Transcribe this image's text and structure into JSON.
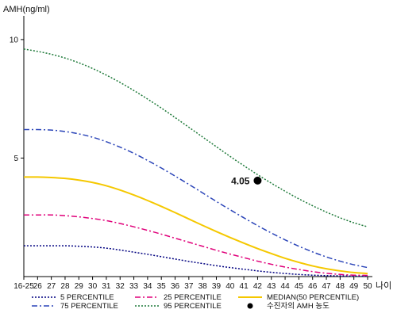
{
  "chart_data": {
    "type": "line",
    "ylabel": "AMH(ng/ml)",
    "xlabel": "나이",
    "ylim": [
      0,
      11
    ],
    "yticks": [
      5,
      10
    ],
    "x_categories": [
      "16-25",
      "26",
      "27",
      "28",
      "29",
      "30",
      "31",
      "32",
      "33",
      "34",
      "35",
      "36",
      "37",
      "38",
      "39",
      "40",
      "41",
      "42",
      "43",
      "44",
      "45",
      "46",
      "47",
      "48",
      "49",
      "50"
    ],
    "series": [
      {
        "name": "5 PERCENTILE",
        "color": "#000080",
        "dash": "2,2",
        "values": [
          1.3,
          1.3,
          1.3,
          1.3,
          1.28,
          1.25,
          1.2,
          1.12,
          1.03,
          0.94,
          0.84,
          0.74,
          0.64,
          0.55,
          0.46,
          0.38,
          0.31,
          0.24,
          0.18,
          0.13,
          0.09,
          0.06,
          0.04,
          0.03,
          0.02,
          0.02
        ]
      },
      {
        "name": "25 PERCENTILE",
        "color": "#e0007a",
        "dash": "7,3,2,3",
        "values": [
          2.6,
          2.6,
          2.6,
          2.57,
          2.52,
          2.45,
          2.36,
          2.24,
          2.1,
          1.95,
          1.79,
          1.62,
          1.45,
          1.28,
          1.11,
          0.95,
          0.8,
          0.65,
          0.52,
          0.4,
          0.3,
          0.21,
          0.14,
          0.09,
          0.06,
          0.05
        ]
      },
      {
        "name": "MEDIAN(50 PERCENTILE)",
        "color": "#f5c800",
        "dash": "",
        "values": [
          4.2,
          4.2,
          4.18,
          4.14,
          4.07,
          3.97,
          3.83,
          3.65,
          3.44,
          3.21,
          2.96,
          2.7,
          2.43,
          2.16,
          1.9,
          1.65,
          1.41,
          1.18,
          0.97,
          0.77,
          0.6,
          0.45,
          0.33,
          0.24,
          0.17,
          0.13
        ]
      },
      {
        "name": "75 PERCENTILE",
        "color": "#2a44b8",
        "dash": "7,3,2,3",
        "values": [
          6.2,
          6.2,
          6.18,
          6.12,
          6.02,
          5.88,
          5.69,
          5.46,
          5.2,
          4.9,
          4.58,
          4.24,
          3.89,
          3.53,
          3.17,
          2.82,
          2.48,
          2.15,
          1.84,
          1.55,
          1.28,
          1.04,
          0.83,
          0.65,
          0.5,
          0.38
        ]
      },
      {
        "name": "95 PERCENTILE",
        "color": "#1f7a3a",
        "dash": "2,2",
        "values": [
          9.6,
          9.5,
          9.38,
          9.22,
          9.02,
          8.78,
          8.5,
          8.19,
          7.85,
          7.49,
          7.11,
          6.71,
          6.3,
          5.89,
          5.48,
          5.07,
          4.68,
          4.3,
          3.94,
          3.6,
          3.28,
          2.99,
          2.72,
          2.48,
          2.27,
          2.1
        ]
      }
    ],
    "marker": {
      "name": "수진자의 AMH 농도",
      "x": "42",
      "y": 4.05,
      "label": "4.05",
      "color": "#000000"
    },
    "legend": {
      "position": "bottom",
      "order": [
        "5 PERCENTILE",
        "25 PERCENTILE",
        "MEDIAN(50 PERCENTILE)",
        "75 PERCENTILE",
        "95 PERCENTILE",
        "수진자의 AMH 농도"
      ]
    },
    "grid": false
  }
}
